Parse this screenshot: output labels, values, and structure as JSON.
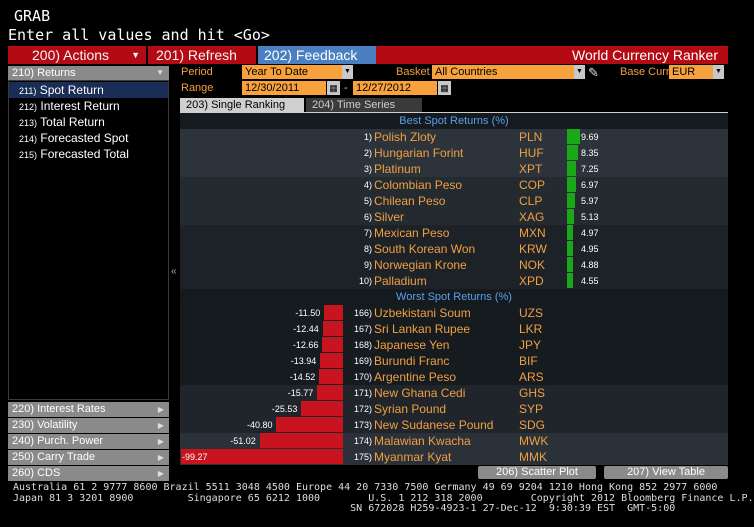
{
  "header": {
    "grab": "GRAB",
    "prompt": "Enter all values and hit <Go>"
  },
  "toolbar": {
    "actions": "200) Actions",
    "refresh": "201) Refresh",
    "feedback": "202) Feedback",
    "title": "World Currency Ranker"
  },
  "left": {
    "header": "210) Returns",
    "items": [
      {
        "num": "211)",
        "label": "Spot Return"
      },
      {
        "num": "212)",
        "label": "Interest Return"
      },
      {
        "num": "213)",
        "label": "Total Return"
      },
      {
        "num": "214)",
        "label": "Forecasted Spot"
      },
      {
        "num": "215)",
        "label": "Forecasted Total"
      }
    ],
    "bottom": [
      "220) Interest Rates",
      "230) Volatility",
      "240) Purch. Power",
      "250) Carry Trade",
      "260) CDS"
    ]
  },
  "params": {
    "period_label": "Period",
    "period_value": "Year To Date",
    "basket_label": "Basket",
    "basket_value": "All Countries",
    "base_label": "Base Curr",
    "base_value": "EUR",
    "range_label": "Range",
    "range_from": "12/30/2011",
    "range_dash": "-",
    "range_to": "12/27/2012"
  },
  "tabs": {
    "single": "203) Single Ranking",
    "time": "204) Time Series"
  },
  "best": {
    "header": "Best Spot Returns",
    "pct": "(%)",
    "rows": [
      {
        "rank": "1)",
        "name": "Polish Zloty",
        "code": "PLN",
        "value": 9.69,
        "label": "9.69"
      },
      {
        "rank": "2)",
        "name": "Hungarian Forint",
        "code": "HUF",
        "value": 8.35,
        "label": "8.35"
      },
      {
        "rank": "3)",
        "name": "Platinum",
        "code": "XPT",
        "value": 7.25,
        "label": "7.25"
      },
      {
        "rank": "4)",
        "name": "Colombian Peso",
        "code": "COP",
        "value": 6.97,
        "label": "6.97"
      },
      {
        "rank": "5)",
        "name": "Chilean Peso",
        "code": "CLP",
        "value": 5.97,
        "label": "5.97"
      },
      {
        "rank": "6)",
        "name": "Silver",
        "code": "XAG",
        "value": 5.13,
        "label": "5.13"
      },
      {
        "rank": "7)",
        "name": "Mexican Peso",
        "code": "MXN",
        "value": 4.97,
        "label": "4.97"
      },
      {
        "rank": "8)",
        "name": "South Korean Won",
        "code": "KRW",
        "value": 4.95,
        "label": "4.95"
      },
      {
        "rank": "9)",
        "name": "Norwegian Krone",
        "code": "NOK",
        "value": 4.88,
        "label": "4.88"
      },
      {
        "rank": "10)",
        "name": "Palladium",
        "code": "XPD",
        "value": 4.55,
        "label": "4.55"
      }
    ]
  },
  "worst": {
    "header": "Worst Spot Returns",
    "pct": "(%)",
    "rows": [
      {
        "rank": "166)",
        "name": "Uzbekistani Soum",
        "code": "UZS",
        "value": -11.5,
        "label": "-11.50"
      },
      {
        "rank": "167)",
        "name": "Sri Lankan Rupee",
        "code": "LKR",
        "value": -12.44,
        "label": "-12.44"
      },
      {
        "rank": "168)",
        "name": "Japanese Yen",
        "code": "JPY",
        "value": -12.66,
        "label": "-12.66"
      },
      {
        "rank": "169)",
        "name": "Burundi Franc",
        "code": "BIF",
        "value": -13.94,
        "label": "-13.94"
      },
      {
        "rank": "170)",
        "name": "Argentine Peso",
        "code": "ARS",
        "value": -14.52,
        "label": "-14.52"
      },
      {
        "rank": "171)",
        "name": "New Ghana Cedi",
        "code": "GHS",
        "value": -15.77,
        "label": "-15.77"
      },
      {
        "rank": "172)",
        "name": "Syrian Pound",
        "code": "SYP",
        "value": -25.53,
        "label": "-25.53"
      },
      {
        "rank": "173)",
        "name": "New Sudanese Pound",
        "code": "SDG",
        "value": -40.8,
        "label": "-40.80"
      },
      {
        "rank": "174)",
        "name": "Malawian Kwacha",
        "code": "MWK",
        "value": -51.02,
        "label": "-51.02"
      },
      {
        "rank": "175)",
        "name": "Myanmar Kyat",
        "code": "MMK",
        "value": -99.27,
        "label": "-99.27"
      }
    ]
  },
  "buttons": {
    "scatter": "206) Scatter Plot",
    "table": "207) View Table"
  },
  "footer": {
    "line1": "Australia 61 2 9777 8600 Brazil 5511 3048 4500 Europe 44 20 7330 7500 Germany 49 69 9204 1210 Hong Kong 852 2977 6000",
    "line2": "Japan 81 3 3201 8900         Singapore 65 6212 1000        U.S. 1 212 318 2000        Copyright 2012 Bloomberg Finance L.P.",
    "line3": "                                                        SN 672028 H259-4923-1 27-Dec-12  9:30:39 EST  GMT-5:00"
  },
  "colors": {
    "accent_orange": "#f0a040",
    "toolbar_red": "#b40a14",
    "feedback_blue": "#4a7fc2",
    "best_bar": "#18a818",
    "worst_bar": "#c8141e",
    "section_blue": "#5aa0e8"
  }
}
